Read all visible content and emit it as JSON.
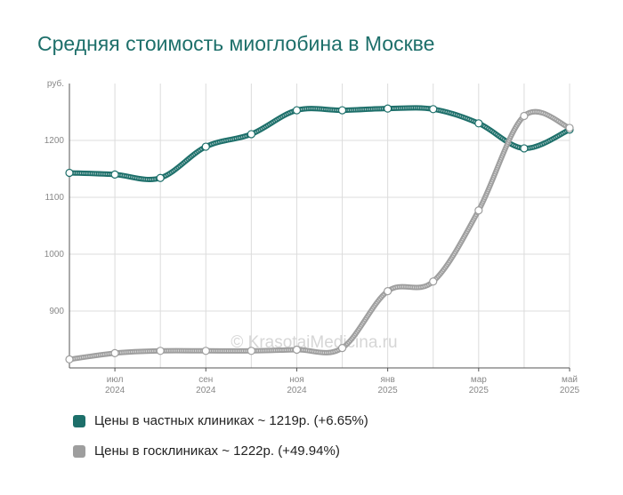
{
  "title": "Средняя стоимость миоглобина в Москве",
  "watermark": "© KrasotaiMedicina.ru",
  "chart_data": {
    "type": "line",
    "y_unit": "руб.",
    "ylim": [
      800,
      1300
    ],
    "yticks": [
      900,
      1000,
      1100,
      1200
    ],
    "x_ticks": [
      {
        "label": "июл",
        "year": "2024",
        "index": 1
      },
      {
        "label": "сен",
        "year": "2024",
        "index": 3
      },
      {
        "label": "ноя",
        "year": "2024",
        "index": 5
      },
      {
        "label": "янв",
        "year": "2025",
        "index": 7
      },
      {
        "label": "мар",
        "year": "2025",
        "index": 9
      },
      {
        "label": "май",
        "year": "2025",
        "index": 11
      }
    ],
    "x": [
      "2024-06",
      "2024-07",
      "2024-08",
      "2024-09",
      "2024-10",
      "2024-11",
      "2024-12",
      "2025-01",
      "2025-02",
      "2025-03",
      "2025-04",
      "2025-05"
    ],
    "series": [
      {
        "name": "Цены в частных клиниках",
        "color": "#1d6f6a",
        "values": [
          1143,
          1140,
          1134,
          1189,
          1211,
          1253,
          1253,
          1256,
          1255,
          1230,
          1186,
          1219
        ]
      },
      {
        "name": "Цены в госклиниках",
        "color": "#9e9e9e",
        "values": [
          815,
          826,
          830,
          830,
          830,
          832,
          835,
          935,
          952,
          1077,
          1243,
          1222
        ]
      }
    ],
    "grid": true
  },
  "legend": [
    {
      "text": "Цены в частных клиниках ~ 1219р. (+6.65%)",
      "color": "#1d6f6a"
    },
    {
      "text": "Цены в госклиниках ~ 1222р. (+49.94%)",
      "color": "#9e9e9e"
    }
  ]
}
